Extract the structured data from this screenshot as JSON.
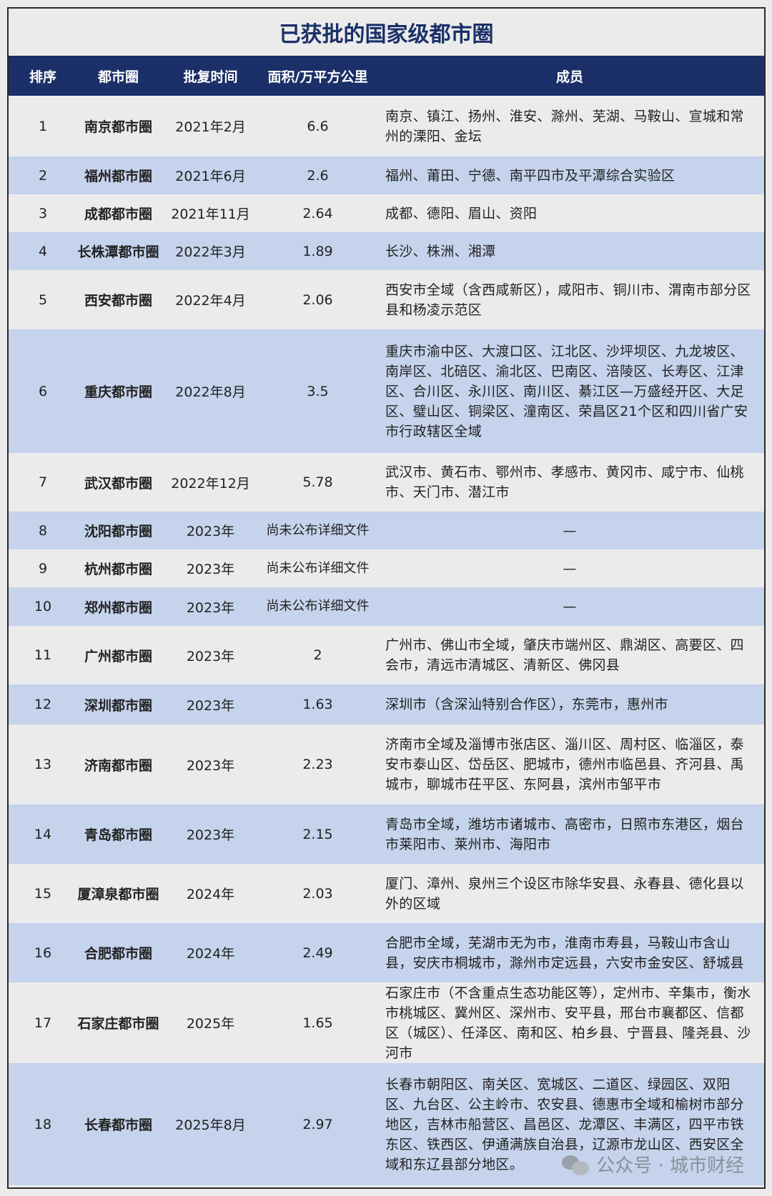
{
  "title": "已获批的国家级都市圈",
  "header": {
    "rank": "排序",
    "name": "都市圈",
    "date": "批复时间",
    "area": "面积/万平方公里",
    "members": "成员"
  },
  "colors": {
    "header_bg": "#1b3068",
    "row_alt": "#c5d3ec",
    "row_base": "#ebebeb"
  },
  "rows": [
    {
      "rank": "1",
      "name": "南京都市圈",
      "date": "2021年2月",
      "area": "6.6",
      "members": "南京、镇江、扬州、淮安、滁州、芜湖、马鞍山、宣城和常州的溧阳、金坛"
    },
    {
      "rank": "2",
      "name": "福州都市圈",
      "date": "2021年6月",
      "area": "2.6",
      "members": "福州、莆田、宁德、南平四市及平潭综合实验区"
    },
    {
      "rank": "3",
      "name": "成都都市圈",
      "date": "2021年11月",
      "area": "2.64",
      "members": "成都、德阳、眉山、资阳"
    },
    {
      "rank": "4",
      "name": "长株潭都市圈",
      "date": "2022年3月",
      "area": "1.89",
      "members": "长沙、株洲、湘潭"
    },
    {
      "rank": "5",
      "name": "西安都市圈",
      "date": "2022年4月",
      "area": "2.06",
      "members": "西安市全域（含西咸新区），咸阳市、铜川市、渭南市部分区县和杨凌示范区"
    },
    {
      "rank": "6",
      "name": "重庆都市圈",
      "date": "2022年8月",
      "area": "3.5",
      "members": "重庆市渝中区、大渡口区、江北区、沙坪坝区、九龙坡区、南岸区、北碚区、渝北区、巴南区、涪陵区、长寿区、江津区、合川区、永川区、南川区、綦江区—万盛经开区、大足区、璧山区、铜梁区、潼南区、荣昌区21个区和四川省广安市行政辖区全域"
    },
    {
      "rank": "7",
      "name": "武汉都市圈",
      "date": "2022年12月",
      "area": "5.78",
      "members": "武汉市、黄石市、鄂州市、孝感市、黄冈市、咸宁市、仙桃市、天门市、潜江市"
    },
    {
      "rank": "8",
      "name": "沈阳都市圈",
      "date": "2023年",
      "area": "尚未公布详细文件",
      "members": "—"
    },
    {
      "rank": "9",
      "name": "杭州都市圈",
      "date": "2023年",
      "area": "尚未公布详细文件",
      "members": "—"
    },
    {
      "rank": "10",
      "name": "郑州都市圈",
      "date": "2023年",
      "area": "尚未公布详细文件",
      "members": "—"
    },
    {
      "rank": "11",
      "name": "广州都市圈",
      "date": "2023年",
      "area": "2",
      "members": "广州市、佛山市全域，肇庆市端州区、鼎湖区、高要区、四会市，清远市清城区、清新区、佛冈县"
    },
    {
      "rank": "12",
      "name": "深圳都市圈",
      "date": "2023年",
      "area": "1.63",
      "members": "深圳市（含深汕特别合作区），东莞市，惠州市"
    },
    {
      "rank": "13",
      "name": "济南都市圈",
      "date": "2023年",
      "area": "2.23",
      "members": "济南市全域及淄博市张店区、淄川区、周村区、临淄区，泰安市泰山区、岱岳区、肥城市，德州市临邑县、齐河县、禹城市，聊城市茌平区、东阿县，滨州市邹平市"
    },
    {
      "rank": "14",
      "name": "青岛都市圈",
      "date": "2023年",
      "area": "2.15",
      "members": "青岛市全域，潍坊市诸城市、高密市，日照市东港区，烟台市莱阳市、莱州市、海阳市"
    },
    {
      "rank": "15",
      "name": "厦漳泉都市圈",
      "date": "2024年",
      "area": "2.03",
      "members": "厦门、漳州、泉州三个设区市除华安县、永春县、德化县以外的区域"
    },
    {
      "rank": "16",
      "name": "合肥都市圈",
      "date": "2024年",
      "area": "2.49",
      "members": "合肥市全域，芜湖市无为市，淮南市寿县，马鞍山市含山县，安庆市桐城市，滁州市定远县，六安市金安区、舒城县"
    },
    {
      "rank": "17",
      "name": "石家庄都市圈",
      "date": "2025年",
      "area": "1.65",
      "members": "石家庄市（不含重点生态功能区等），定州市、辛集市，衡水市桃城区、冀州区、深州市、安平县，邢台市襄都区、信都区（城区）、任泽区、南和区、柏乡县、宁晋县、隆尧县、沙河市"
    },
    {
      "rank": "18",
      "name": "长春都市圈",
      "date": "2025年8月",
      "area": "2.97",
      "members": "长春市朝阳区、南关区、宽城区、二道区、绿园区、双阳区、九台区、公主岭市、农安县、德惠市全域和榆树市部分地区，吉林市船营区、昌邑区、龙潭区、丰满区，四平市铁东区、铁西区、伊通满族自治县，辽源市龙山区、西安区全域和东辽县部分地区。"
    }
  ],
  "watermark": "公众号 · 城市财经"
}
